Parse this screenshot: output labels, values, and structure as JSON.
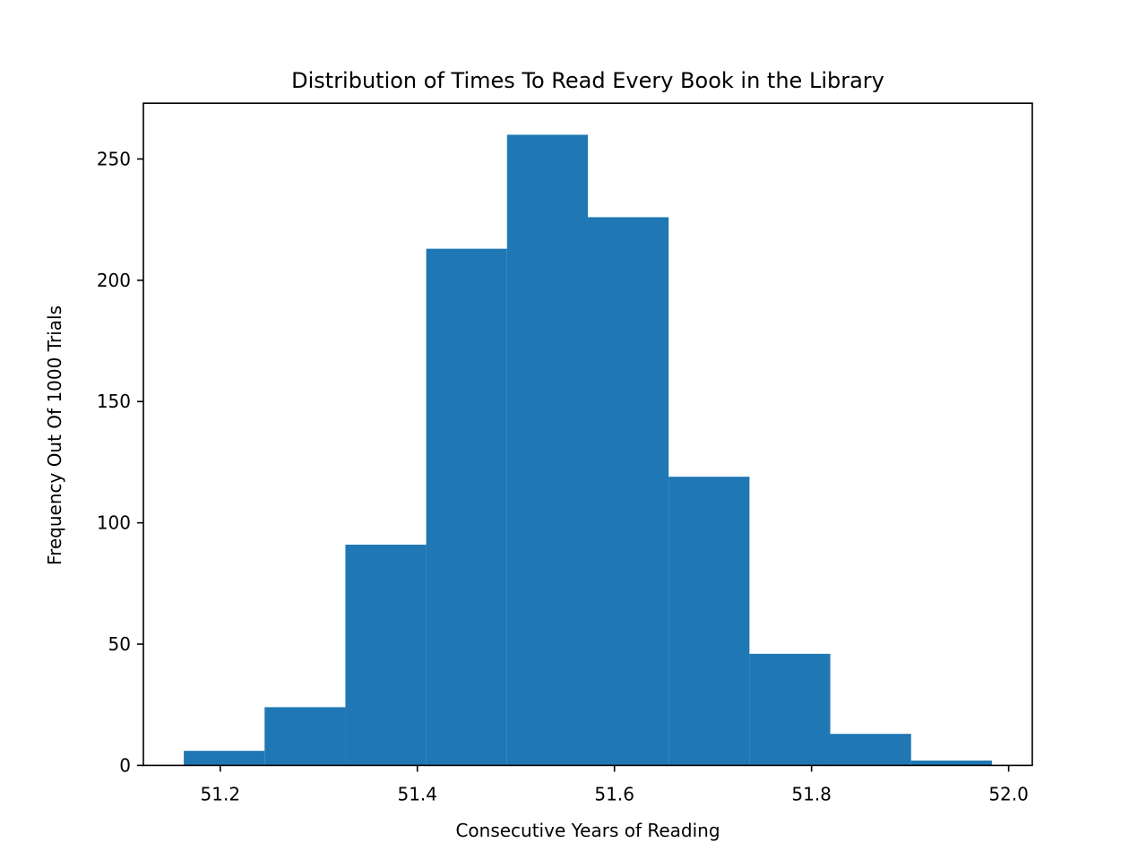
{
  "chart_data": {
    "type": "bar",
    "histogram": true,
    "title": "Distribution of Times To Read Every Book in the Library",
    "xlabel": "Consecutive Years of Reading",
    "ylabel": "Frequency Out Of 1000 Trials",
    "bin_edges": [
      51.163,
      51.245,
      51.327,
      51.409,
      51.491,
      51.573,
      51.655,
      51.737,
      51.819,
      51.901,
      51.983
    ],
    "values": [
      6,
      24,
      91,
      213,
      260,
      226,
      119,
      46,
      13,
      2
    ],
    "xlim": [
      51.122,
      52.024
    ],
    "ylim": [
      0,
      273
    ],
    "xticks": [
      51.2,
      51.4,
      51.6,
      51.8,
      52.0
    ],
    "xtick_labels": [
      "51.2",
      "51.4",
      "51.6",
      "51.8",
      "52.0"
    ],
    "yticks": [
      0,
      50,
      100,
      150,
      200,
      250
    ],
    "ytick_labels": [
      "0",
      "50",
      "100",
      "150",
      "200",
      "250"
    ],
    "bar_color": "#1f77b4",
    "grid": false,
    "legend": "none"
  }
}
